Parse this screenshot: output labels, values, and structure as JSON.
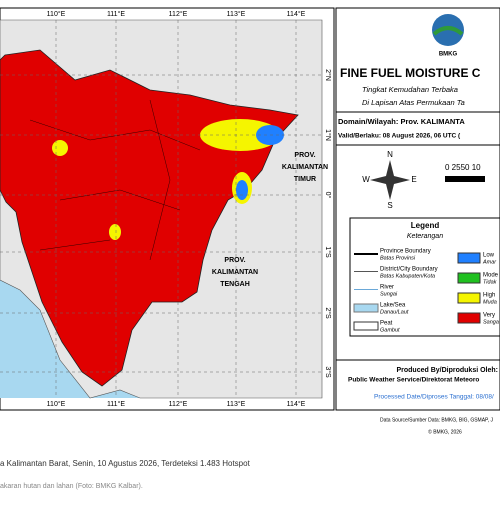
{
  "map": {
    "lon_labels_top": [
      "110°E",
      "111°E",
      "112°E",
      "113°E",
      "114°E"
    ],
    "lon_labels_bottom": [
      "110°E",
      "111°E",
      "112°E",
      "113°E",
      "114°E"
    ],
    "lat_labels": [
      "2°N",
      "1°N",
      "0°",
      "1°S",
      "2°S",
      "3°S"
    ],
    "region_timur": [
      "PROV.",
      "KALIMANTAN",
      "TIMUR"
    ],
    "region_tengah": [
      "PROV.",
      "KALIMANTAN",
      "TENGAH"
    ]
  },
  "panel": {
    "logo": "BMKG",
    "title": "FINE FUEL MOISTURE C",
    "subtitle": [
      "Tingkat Kemudahan Terbaka",
      "Di Lapisan Atas Permukaan Ta"
    ],
    "domain": "Domain/Wilayah: Prov. KALIMANTA",
    "valid": "Valid/Berlaku: 08 August 2026, 06 UTC (",
    "compass": [
      "N",
      "S",
      "W",
      "E"
    ],
    "scale": "0 2550 10",
    "legend": {
      "title": "Legend",
      "subtitle": "Keterangan",
      "items": [
        {
          "label": "Province Boundary",
          "sublabel": "Batas Provinsi"
        },
        {
          "label": "District/City Boundary",
          "sublabel": "Batas Kabupaten/Kota"
        },
        {
          "label": "River",
          "sublabel": "Sungai"
        },
        {
          "label": "Lake/Sea",
          "sublabel": "Danau/Laut"
        },
        {
          "label": "Peat",
          "sublabel": "Gambut"
        }
      ],
      "classes": [
        {
          "label": "Low",
          "sublabel": "Amar"
        },
        {
          "label": "Mode",
          "sublabel": "Tidak"
        },
        {
          "label": "High",
          "sublabel": "Muda"
        },
        {
          "label": "Very",
          "sublabel": "Sanga"
        }
      ]
    },
    "produced_by": "Produced By/Diproduksi Oleh:",
    "producer": "Public Weather Service/Direktorat Meteoro",
    "processed": "Processed Date/Diproses Tanggal: 08/08/",
    "source": "Data Source/Sumber Data: BMKG, BIG, GSMAP, J",
    "copyright": "© BMKG, 2026"
  },
  "caption": [
    "a Kalimantan Barat, Senin, 10 Agustus 2026, Terdeteksi 1.483 Hotspot",
    "akaran hutan dan lahan (Foto: BMKG Kalbar)."
  ]
}
